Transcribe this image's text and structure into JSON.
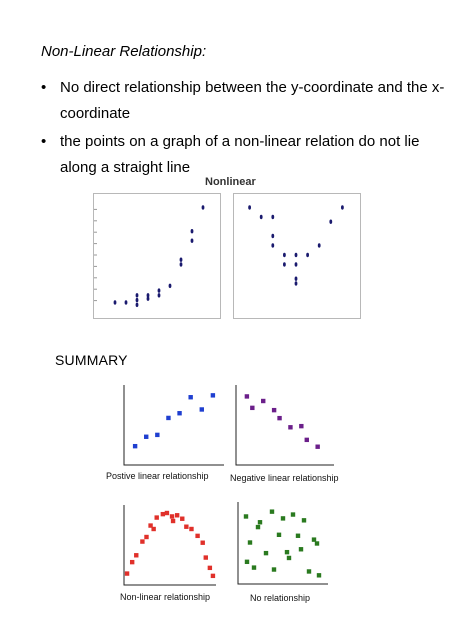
{
  "heading": "Non-Linear Relationship",
  "heading_suffix": ":",
  "bullet_glyph": "•",
  "bullets": [
    "No direct relationship between the y-coordinate and the x-coordinate",
    "the points on a graph of a non-linear relation do not lie along a straight line"
  ],
  "summary_label": "SUMMARY",
  "chart_data": [
    {
      "type": "scatter",
      "title": "Nonlinear",
      "x": [
        1,
        2,
        3,
        3,
        3,
        4,
        4,
        5,
        5,
        6,
        7,
        7,
        8,
        8,
        9
      ],
      "y": [
        2,
        2,
        2.5,
        3.5,
        1.5,
        3.5,
        2.8,
        3.5,
        4.5,
        5.5,
        10,
        11,
        15,
        17,
        22
      ],
      "xlim": [
        0,
        10
      ],
      "ylim": [
        0,
        24
      ],
      "point_color": "#1a1a6e"
    },
    {
      "type": "scatter",
      "title": "",
      "x": [
        1,
        2,
        3,
        3,
        3,
        4,
        4,
        5,
        5,
        5,
        5,
        6,
        7,
        8,
        9
      ],
      "y": [
        22,
        20,
        20,
        16,
        14,
        12,
        10,
        12,
        10,
        7,
        6,
        12,
        14,
        19,
        22
      ],
      "xlim": [
        0,
        10
      ],
      "ylim": [
        0,
        24
      ],
      "point_color": "#1a1a6e"
    },
    {
      "type": "scatter",
      "caption": "Postive linear relationship",
      "x": [
        1,
        2,
        3,
        4,
        5,
        6,
        7,
        8
      ],
      "y": [
        2,
        3,
        3.2,
        5,
        5.5,
        7.2,
        5.9,
        7.4
      ],
      "xlim": [
        0,
        9
      ],
      "ylim": [
        0,
        8.5
      ],
      "point_color": "#1f3fd0"
    },
    {
      "type": "scatter",
      "caption": "Negative linear relationship",
      "x": [
        1,
        1.5,
        2.5,
        3.5,
        4,
        5,
        6,
        6.5,
        7.5
      ],
      "y": [
        8,
        7,
        7.6,
        6.8,
        6.1,
        5.3,
        5.4,
        4.2,
        3.6
      ],
      "xlim": [
        0,
        9
      ],
      "ylim": [
        2,
        9
      ],
      "point_color": "#6b1f8a"
    },
    {
      "type": "scatter",
      "caption": "Non-linear relationship",
      "x": [
        0.3,
        0.8,
        1.2,
        1.8,
        2.2,
        2.6,
        3.2,
        3.8,
        4.2,
        4.7,
        5.2,
        5.7,
        6.1,
        6.6,
        7.2,
        7.7,
        8.0,
        8.4,
        8.7,
        2.9,
        4.8
      ],
      "y": [
        1,
        2,
        2.6,
        3.8,
        4.2,
        5.2,
        5.9,
        6.2,
        6.3,
        6.0,
        6.1,
        5.8,
        5.1,
        4.9,
        4.3,
        3.7,
        2.4,
        1.5,
        0.8,
        4.9,
        5.6
      ],
      "xlim": [
        0,
        9
      ],
      "ylim": [
        0,
        7
      ],
      "point_color": "#e0302a"
    },
    {
      "type": "scatter",
      "caption": "No relationship",
      "x": [
        0.8,
        1.2,
        2.2,
        3.4,
        4.5,
        5.5,
        6.6,
        7.6,
        0.9,
        2.8,
        4.9,
        6.3,
        7.9,
        1.6,
        3.6,
        5.1,
        7.1,
        2.0,
        4.1,
        6.0,
        8.1
      ],
      "y": [
        7,
        4.3,
        6.4,
        7.5,
        6.8,
        7.2,
        6.6,
        4.6,
        2.3,
        3.2,
        3.3,
        3.6,
        4.2,
        1.7,
        1.5,
        2.7,
        1.3,
        5.9,
        5.1,
        5.0,
        0.9
      ],
      "xlim": [
        0,
        9
      ],
      "ylim": [
        0,
        8.5
      ],
      "point_color": "#2a7a1f"
    }
  ]
}
